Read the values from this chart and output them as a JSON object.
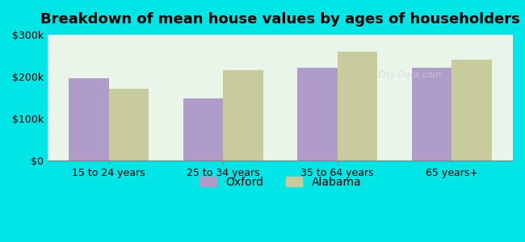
{
  "title": "Breakdown of mean house values by ages of householders",
  "categories": [
    "15 to 24 years",
    "25 to 34 years",
    "35 to 64 years",
    "65 years+"
  ],
  "oxford_values": [
    195000,
    148000,
    220000,
    220000
  ],
  "alabama_values": [
    170000,
    215000,
    260000,
    240000
  ],
  "oxford_color": "#b09cc8",
  "alabama_color": "#c8cc9c",
  "background_color": "#e8f5e8",
  "outer_background": "#00e5e5",
  "ylim": [
    0,
    300000
  ],
  "yticks": [
    0,
    100000,
    200000,
    300000
  ],
  "ytick_labels": [
    "$0",
    "$100k",
    "$200k",
    "$300k"
  ],
  "legend_oxford": "Oxford",
  "legend_alabama": "Alabama",
  "bar_width": 0.35,
  "title_fontsize": 13,
  "tick_fontsize": 9,
  "legend_fontsize": 10
}
